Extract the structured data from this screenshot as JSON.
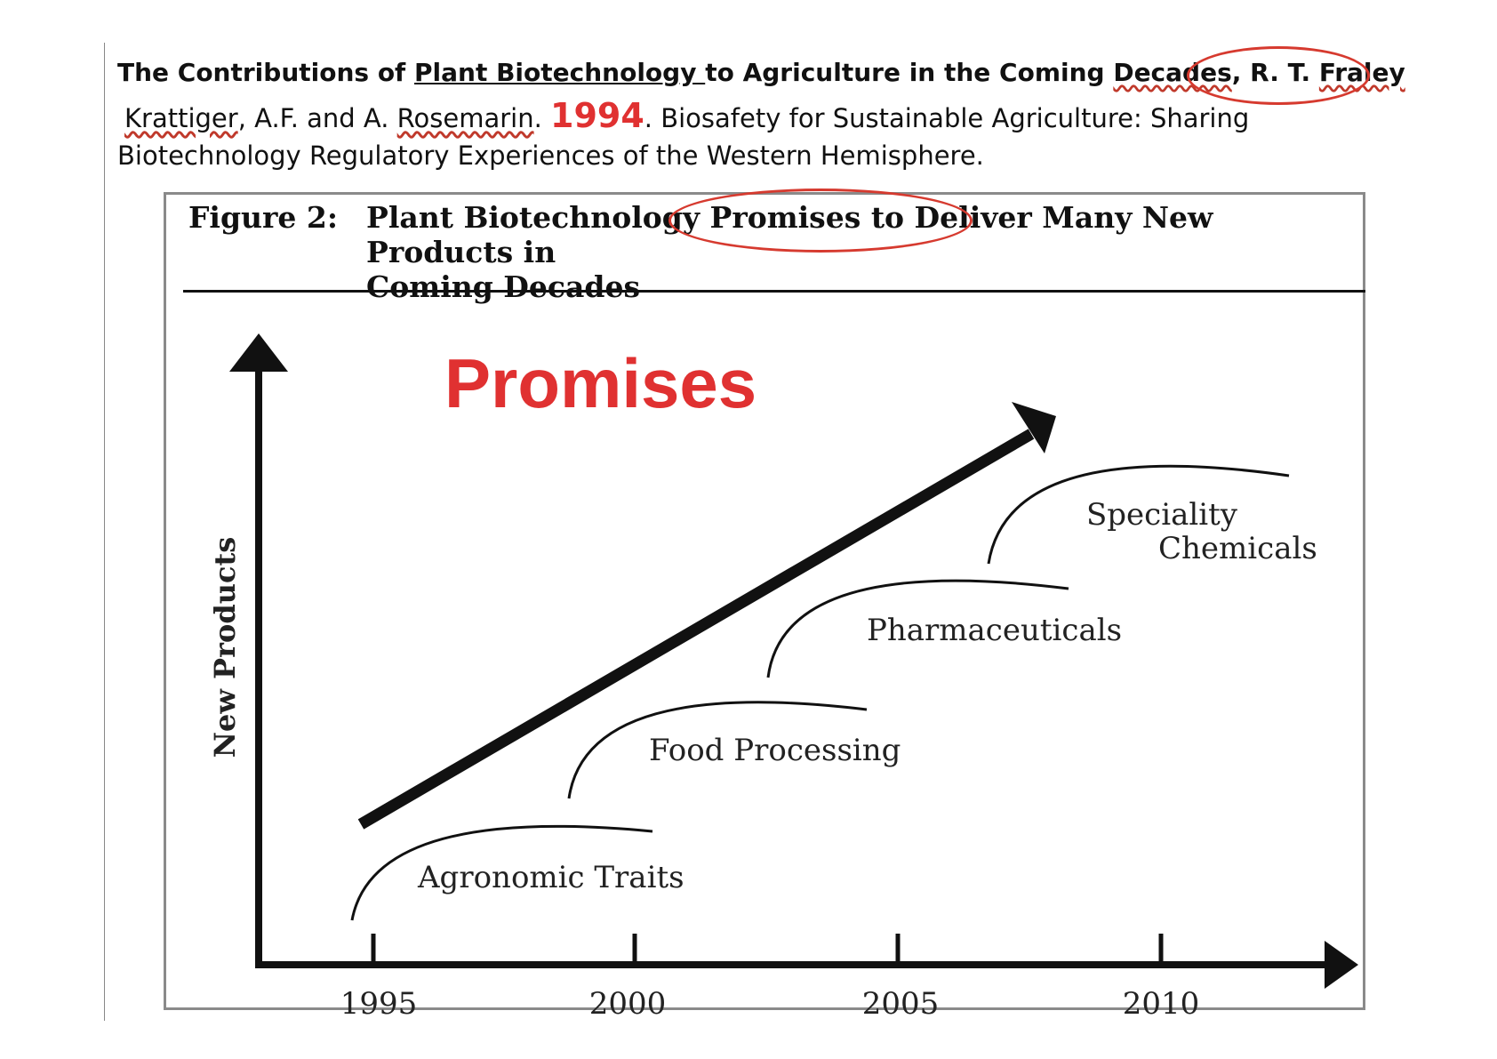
{
  "citation": {
    "title_pre": "The Contributions of ",
    "title_link": "Plant Biotechnology ",
    "title_mid": "to Agriculture in the Coming ",
    "title_decades": "Decades",
    "title_comma": ", ",
    "author_initials": "R. T. ",
    "author_name": "Fraley",
    "ref_author1": "Krattiger",
    "ref_mid": ", A.F. and A. ",
    "ref_author2": "Rosemarin",
    "ref_dot": ". ",
    "year": "1994",
    "ref_rest": ". Biosafety for Sustainable Agriculture: Sharing",
    "ref_line3": "Biotechnology Regulatory Experiences of the Western Hemisphere."
  },
  "figure": {
    "label": "Figure 2:",
    "title": "Plant Biotechnology Promises to Deliver Many New Products in\nComing Decades",
    "annotation": "Promises",
    "annotation_color": "#e03131",
    "circle_color": "#d63a2f"
  },
  "chart_data": {
    "type": "diagram",
    "ylabel": "New Products",
    "x_ticks": [
      "1995",
      "2000",
      "2005",
      "2010"
    ],
    "stages": [
      {
        "label": "Agronomic Traits"
      },
      {
        "label": "Food Processing"
      },
      {
        "label": "Pharmaceuticals"
      },
      {
        "label": "Speciality",
        "label2": "Chemicals"
      }
    ]
  }
}
